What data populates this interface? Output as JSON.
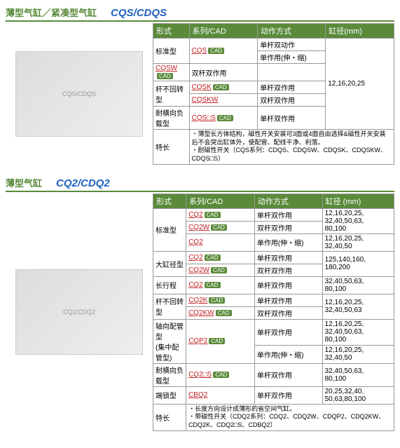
{
  "s1": {
    "title_cn": "薄型气缸／紧凑型气缸",
    "title_en": "CQS/CDQS",
    "hdr": [
      "形式",
      "系列/CAD",
      "动作方式",
      "缸径(mm)"
    ],
    "std": "标准型",
    "nrt": "杆不回转型",
    "lat": "耐横向负载型",
    "feat": "特长",
    "r": [
      {
        "s": "CQS",
        "a": "单杆双动作"
      },
      {
        "s": "",
        "a": "单作用(伸・缩)"
      },
      {
        "s": "CQSW",
        "a": "双杆双作用"
      },
      {
        "s": "CQSK",
        "a": "单杆双作用"
      },
      {
        "s": "CQSKW",
        "a": "双杆双作用"
      },
      {
        "s": "CQS□S",
        "a": "单杆双作用"
      }
    ],
    "bore": "12,16,20,25",
    "note": "・薄型长方体结构，磁性开关安装可3面或4面自由选择&磁性开关安装后不会突出缸体外，使配管、配线干净、利落。\n・耐磁性开关（CQS系列：CDQS、CDQSW、CDQSK、CDQSKW、CDQS□S）"
  },
  "s2": {
    "title_cn": "薄型气缸",
    "title_en": "CQ2/CDQ2",
    "hdr": [
      "形式",
      "系列/CAD",
      "动作方式",
      "缸径 (mm)"
    ],
    "std": "标准型",
    "big": "大缸径型",
    "long": "长行程",
    "nrt": "杆不回转型",
    "axial": "轴向配管型\n(集中配管型)",
    "lat": "耐横向负载型",
    "end": "端锁型",
    "feat": "特长",
    "r": [
      {
        "s": "CQ2",
        "a": "单杆双作用",
        "b": "12,16,20,25,\n32,40,50,63,\n80,100"
      },
      {
        "s": "CQ2W",
        "a": "双杆双作用"
      },
      {
        "s": "CQ2",
        "a": "单作用(伸・缩)",
        "b": "12,16,20,25,\n32,40,50"
      },
      {
        "s": "CQ2",
        "a": "单杆双作用",
        "b": "125,140,160,\n180,200"
      },
      {
        "s": "CQ2W",
        "a": "双杆双作用"
      },
      {
        "s": "CQ2",
        "a": "单杆双作用",
        "b": "32,40,50,63,\n80,100"
      },
      {
        "s": "CQ2K",
        "a": "单杆双作用",
        "b": "12,16,20,25,\n32,40,50,63"
      },
      {
        "s": "CQ2KW",
        "a": "双杆双作用"
      },
      {
        "s": "CQP2",
        "a": "单杆双作用",
        "b": "12,16,20,25,\n32,40,50,63,\n80,100"
      },
      {
        "s": "",
        "a": "单作用(伸・缩)",
        "b": "12,16,20,25,\n32,40,50"
      },
      {
        "s": "CQ2□S",
        "a": "单杆双作用",
        "b": "32,40,50,63,\n80,100"
      },
      {
        "s": "CBQ2",
        "a": "单杆双作用",
        "b": "20,25,32,40,\n50,63,80,100"
      }
    ],
    "note": "・长度方向设计成薄形的省空间气缸。\n・带磁性开关（CDQ2系列：CDQ2、CDQ2W、CDQP2、CDQ2KW、CDQ2K、CDQ2□S、CDBQ2）"
  }
}
